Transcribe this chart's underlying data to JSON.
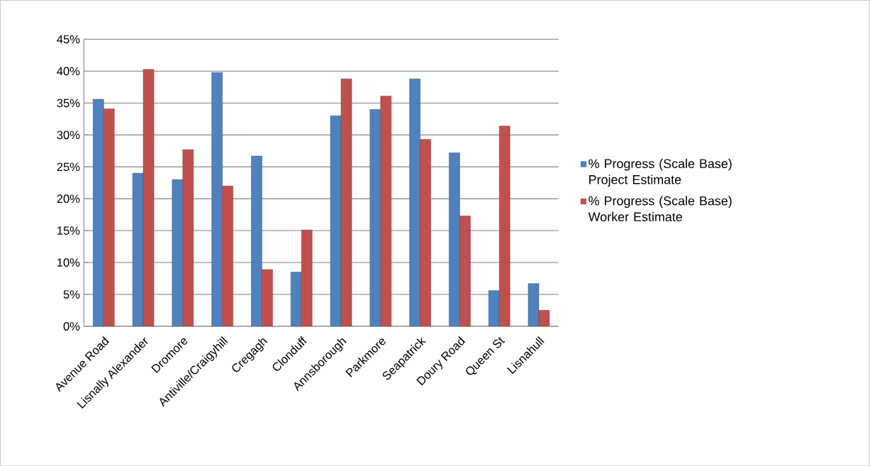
{
  "chart_data": {
    "type": "bar",
    "categories": [
      "Avenue Road",
      "Lisnally Alexander",
      "Dromore",
      "Antiville/Craigyhill",
      "Cregagh",
      "Clonduff",
      "Annsborough",
      "Parkmore",
      "Seapatrick",
      "Doury Road",
      "Queen St",
      "Lisnahull"
    ],
    "series": [
      {
        "name": "% Progress (Scale Base) Project Estimate",
        "color": "#4f81bd",
        "values": [
          35.6,
          24.0,
          23.0,
          39.8,
          26.7,
          8.5,
          33.0,
          34.0,
          38.8,
          27.2,
          5.6,
          6.7
        ]
      },
      {
        "name": "% Progress (Scale Base) Worker Estimate",
        "color": "#c0504d",
        "values": [
          34.1,
          40.3,
          27.7,
          22.0,
          8.9,
          15.1,
          38.8,
          36.1,
          29.3,
          17.3,
          31.4,
          2.5
        ]
      }
    ],
    "ylim": [
      0,
      45
    ],
    "yticks": [
      {
        "value": 0,
        "label": "0%"
      },
      {
        "value": 5,
        "label": "5%"
      },
      {
        "value": 10,
        "label": "10%"
      },
      {
        "value": 15,
        "label": "15%"
      },
      {
        "value": 20,
        "label": "20%"
      },
      {
        "value": 25,
        "label": "25%"
      },
      {
        "value": 30,
        "label": "30%"
      },
      {
        "value": 35,
        "label": "35%"
      },
      {
        "value": 40,
        "label": "40%"
      },
      {
        "value": 45,
        "label": "45%"
      }
    ],
    "grid": "y",
    "legend": "right"
  }
}
